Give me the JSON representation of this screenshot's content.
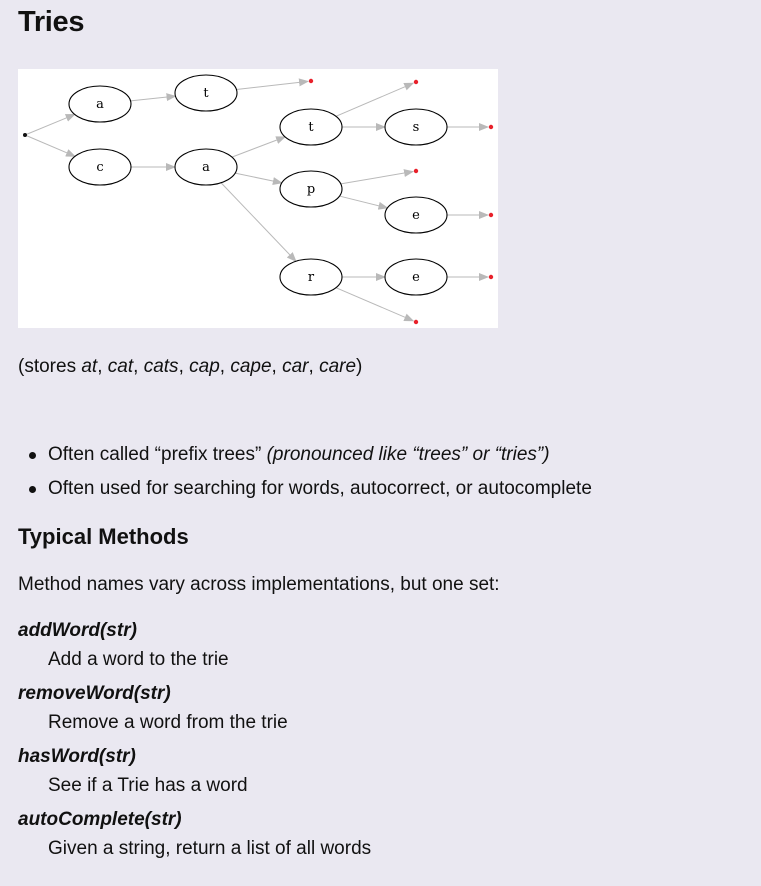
{
  "title": "Tries",
  "diagram": {
    "nodes": [
      "a",
      "t",
      "c",
      "a",
      "t",
      "s",
      "p",
      "e",
      "r",
      "e"
    ],
    "colors": {
      "edge": "#b9b9b9",
      "terminal": "#e8202a",
      "root": "#111111"
    }
  },
  "caption": {
    "prefix": "(stores ",
    "words": [
      "at",
      "cat",
      "cats",
      "cap",
      "cape",
      "car",
      "care"
    ],
    "separator": ", ",
    "suffix": ")"
  },
  "bullets": [
    {
      "text": "Often called “prefix trees” ",
      "emphasis": "(pronounced like “trees” or “tries”)"
    },
    {
      "text": "Often used for searching for words, autocorrect, or autocomplete",
      "emphasis": ""
    }
  ],
  "section_heading": "Typical Methods",
  "intro": "Method names vary across implementations, but one set:",
  "methods": [
    {
      "name": "addWord(str)",
      "description": "Add a word to the trie"
    },
    {
      "name": "removeWord(str)",
      "description": "Remove a word from the trie"
    },
    {
      "name": "hasWord(str)",
      "description": "See if a Trie has a word"
    },
    {
      "name": "autoComplete(str)",
      "description": "Given a string, return a list of all words"
    }
  ]
}
